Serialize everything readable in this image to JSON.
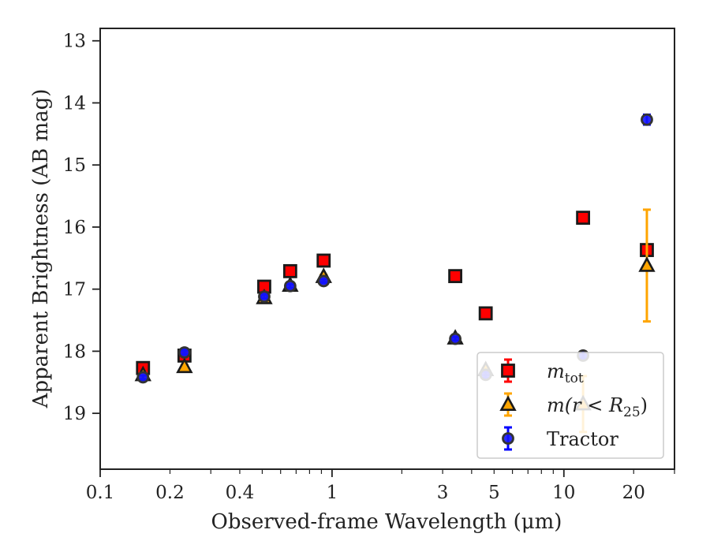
{
  "chart_data": {
    "type": "scatter",
    "xlabel": "Observed-frame Wavelength (μm)",
    "ylabel": "Apparent Brightness (AB mag)",
    "xscale": "log",
    "xlim": [
      0.1,
      30
    ],
    "ylim": [
      19.9,
      12.8
    ],
    "y_inverted": true,
    "x_ticks": [
      {
        "value": 0.1,
        "label": "0.1"
      },
      {
        "value": 0.2,
        "label": "0.2"
      },
      {
        "value": 0.4,
        "label": "0.4"
      },
      {
        "value": 1,
        "label": "1"
      },
      {
        "value": 3,
        "label": "3"
      },
      {
        "value": 5,
        "label": "5"
      },
      {
        "value": 10,
        "label": "10"
      },
      {
        "value": 20,
        "label": "20"
      }
    ],
    "y_ticks": [
      13,
      14,
      15,
      16,
      17,
      18,
      19
    ],
    "grid": false,
    "legend_position": "lower-right",
    "series": [
      {
        "name": "m_tot",
        "marker": "square",
        "color": "#ff0000",
        "edge_color": "#1a1a1a",
        "errorbar_color": "#ff0000",
        "points": [
          {
            "x": 0.153,
            "y": 18.27,
            "err": 0.05
          },
          {
            "x": 0.231,
            "y": 18.07,
            "err": 0.04
          },
          {
            "x": 0.51,
            "y": 16.96,
            "err": 0.03
          },
          {
            "x": 0.66,
            "y": 16.71,
            "err": 0.03
          },
          {
            "x": 0.92,
            "y": 16.54,
            "err": 0.03
          },
          {
            "x": 3.4,
            "y": 16.79,
            "err": 0.03
          },
          {
            "x": 4.6,
            "y": 17.39,
            "err": 0.03
          },
          {
            "x": 12.1,
            "y": 15.85,
            "err": 0.03
          },
          {
            "x": 22.8,
            "y": 16.37,
            "err": 0.03
          }
        ]
      },
      {
        "name": "m(r < R25)",
        "marker": "triangle",
        "color": "#ffa500",
        "edge_color": "#1a1a1a",
        "errorbar_color": "#ffa500",
        "points": [
          {
            "x": 0.153,
            "y": 18.38,
            "err": 0.03
          },
          {
            "x": 0.231,
            "y": 18.25,
            "err": 0.03
          },
          {
            "x": 0.51,
            "y": 17.14,
            "err": 0.03
          },
          {
            "x": 0.66,
            "y": 16.94,
            "err": 0.03
          },
          {
            "x": 0.92,
            "y": 16.8,
            "err": 0.03
          },
          {
            "x": 3.4,
            "y": 17.79,
            "err": 0.03
          },
          {
            "x": 4.6,
            "y": 18.3,
            "err": 0.03
          },
          {
            "x": 12.1,
            "y": 18.85,
            "err": 0.45
          },
          {
            "x": 22.8,
            "y": 16.62,
            "err": 0.9
          }
        ]
      },
      {
        "name": "Tractor",
        "marker": "circle",
        "color": "#1414ff",
        "edge_color": "#333333",
        "errorbar_color": "#0000ff",
        "points": [
          {
            "x": 0.153,
            "y": 18.42,
            "err": 0.03
          },
          {
            "x": 0.231,
            "y": 18.02,
            "err": 0.03
          },
          {
            "x": 0.51,
            "y": 17.12,
            "err": 0.03
          },
          {
            "x": 0.66,
            "y": 16.95,
            "err": 0.03
          },
          {
            "x": 0.92,
            "y": 16.87,
            "err": 0.03
          },
          {
            "x": 3.4,
            "y": 17.8,
            "err": 0.03
          },
          {
            "x": 4.6,
            "y": 18.38,
            "err": 0.05
          },
          {
            "x": 12.1,
            "y": 18.07,
            "err": 0.05
          },
          {
            "x": 22.8,
            "y": 14.27,
            "err": 0.08
          }
        ]
      }
    ],
    "legend": {
      "entries": [
        {
          "series": 0,
          "label_main": "m",
          "label_sub": "tot"
        },
        {
          "series": 1,
          "label_main": "m(r < R",
          "label_sub": "25",
          "label_tail": ")"
        },
        {
          "series": 2,
          "label_main": "Tractor"
        }
      ]
    }
  }
}
